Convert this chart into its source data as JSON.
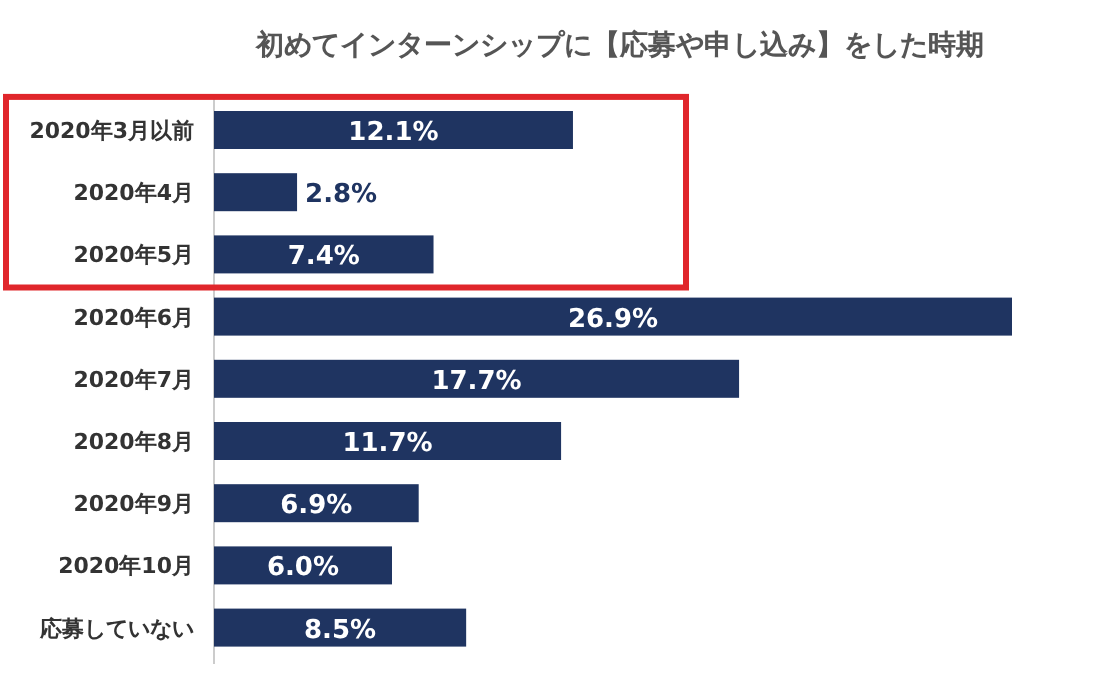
{
  "chart_data": {
    "type": "bar",
    "orientation": "horizontal",
    "title": "初めてインターンシップに【応募や申し込み】をした時期",
    "categories": [
      "2020年3月以前",
      "2020年4月",
      "2020年5月",
      "2020年6月",
      "2020年7月",
      "2020年8月",
      "2020年9月",
      "2020年10月",
      "応募していない"
    ],
    "values": [
      12.1,
      2.8,
      7.4,
      26.9,
      17.7,
      11.7,
      6.9,
      6.0,
      8.5
    ],
    "value_labels": [
      "12.1%",
      "2.8%",
      "7.4%",
      "26.9%",
      "17.7%",
      "11.7%",
      "6.9%",
      "6.0%",
      "8.5%"
    ],
    "color": "#1f3461"
  }
}
